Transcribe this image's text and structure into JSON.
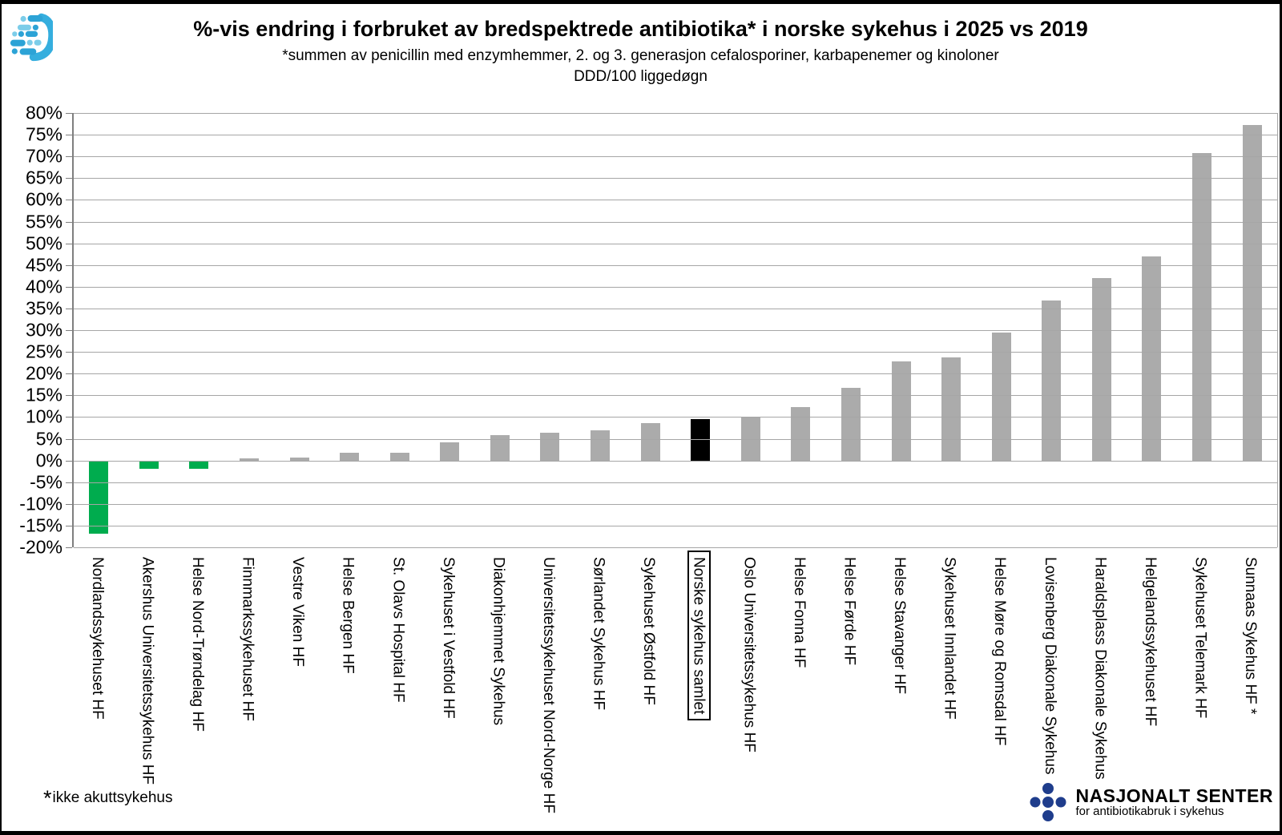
{
  "header": {
    "title": "%-vis endring i forbruket av bredspektrede antibiotika* i norske sykehus i 2025 vs 2019",
    "subtitle": "*summen av penicillin med enzymhemmer, 2. og 3. generasjon cefalosporiner, karbapenemer og kinoloner",
    "unit_line": "DDD/100 liggedøgn"
  },
  "footnote": {
    "star": "*",
    "text": "ikke akuttsykehus"
  },
  "branding": {
    "line1": "NASJONALT SENTER",
    "line2": "for antibiotikabruk i sykehus"
  },
  "colors": {
    "bar_gray": "#ababab",
    "bar_green": "#00ac4e",
    "bar_black": "#000000",
    "gridline": "#a6a6a6",
    "navy": "#1f3d8c",
    "logo_blue": "#2ca3d6",
    "logo_blue_light": "#7ccde9"
  },
  "chart_data": {
    "type": "bar",
    "title": "%-vis endring i forbruket av bredspektrede antibiotika* i norske sykehus i 2025 vs 2019",
    "subtitle": "*summen av penicillin med enzymhemmer, 2. og 3. generasjon cefalosporiner, karbapenemer og kinoloner",
    "unit": "DDD/100 liggedøgn",
    "ylabel": "",
    "xlabel": "",
    "ylim": [
      -20,
      80
    ],
    "ytick_step": 5,
    "ytick_suffix": "%",
    "grid": "horizontal",
    "legend": "none",
    "bars": [
      {
        "label": "Nordlandssykehuset HF",
        "value": -16.8,
        "color": "green",
        "boxed": false
      },
      {
        "label": "Akershus Universitetssykehus HF",
        "value": -2.0,
        "color": "green",
        "boxed": false
      },
      {
        "label": "Helse Nord-Trøndelag HF",
        "value": -1.9,
        "color": "green",
        "boxed": false
      },
      {
        "label": "Finnmarkssykehuset HF",
        "value": 0.5,
        "color": "gray",
        "boxed": false
      },
      {
        "label": "Vestre Viken HF",
        "value": 0.6,
        "color": "gray",
        "boxed": false
      },
      {
        "label": "Helse Bergen HF",
        "value": 1.7,
        "color": "gray",
        "boxed": false
      },
      {
        "label": "St. Olavs Hospital HF",
        "value": 1.7,
        "color": "gray",
        "boxed": false
      },
      {
        "label": "Sykehuset i Vestfold HF",
        "value": 4.2,
        "color": "gray",
        "boxed": false
      },
      {
        "label": "Diakonhjemmet Sykehus",
        "value": 5.8,
        "color": "gray",
        "boxed": false
      },
      {
        "label": "Universitetssykehuset Nord-Norge HF",
        "value": 6.4,
        "color": "gray",
        "boxed": false
      },
      {
        "label": "Sørlandet Sykehus HF",
        "value": 7.0,
        "color": "gray",
        "boxed": false
      },
      {
        "label": "Sykehuset Østfold HF",
        "value": 8.6,
        "color": "gray",
        "boxed": false
      },
      {
        "label": "Norske sykehus samlet",
        "value": 9.5,
        "color": "black",
        "boxed": true
      },
      {
        "label": "Oslo Universitetssykehus HF",
        "value": 10.0,
        "color": "gray",
        "boxed": false
      },
      {
        "label": "Helse Fonna HF",
        "value": 12.3,
        "color": "gray",
        "boxed": false
      },
      {
        "label": "Helse Førde HF",
        "value": 16.8,
        "color": "gray",
        "boxed": false
      },
      {
        "label": "Helse Stavanger HF",
        "value": 22.8,
        "color": "gray",
        "boxed": false
      },
      {
        "label": "Sykehuset Innlandet HF",
        "value": 23.8,
        "color": "gray",
        "boxed": false
      },
      {
        "label": "Helse Møre og Romsdal HF",
        "value": 29.5,
        "color": "gray",
        "boxed": false
      },
      {
        "label": "Lovisenberg Diakonale Sykehus",
        "value": 36.8,
        "color": "gray",
        "boxed": false
      },
      {
        "label": "Haraldsplass Diakonale Sykehus",
        "value": 42.0,
        "color": "gray",
        "boxed": false
      },
      {
        "label": "Helgelandssykehuset HF",
        "value": 47.0,
        "color": "gray",
        "boxed": false
      },
      {
        "label": "Sykehuset Telemark HF",
        "value": 70.8,
        "color": "gray",
        "boxed": false
      },
      {
        "label": "Sunnaas Sykehus HF *",
        "value": 77.3,
        "color": "gray",
        "boxed": false
      }
    ]
  }
}
